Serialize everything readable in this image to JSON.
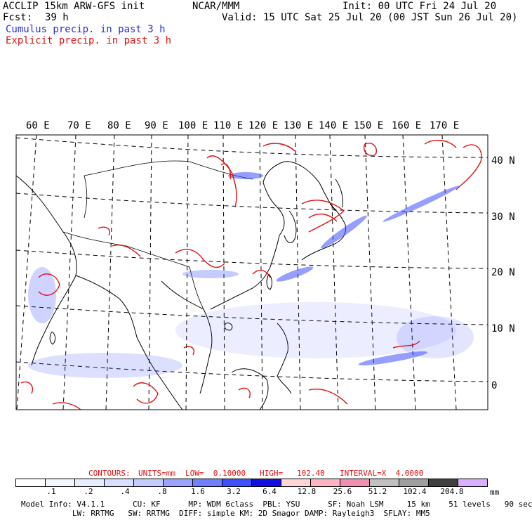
{
  "header": {
    "title_left": "ACCLIP 15km ARW-GFS init",
    "fcst_label": "Fcst:",
    "fcst_value": "39 h",
    "center": "NCAR/MMM",
    "init": "Init: 00 UTC Fri 24 Jul 20",
    "valid": "Valid: 15 UTC Sat 25 Jul 20 (00 JST Sun 26 Jul 20)",
    "legend_cumulus": "Cumulus precip. in past 3 h",
    "legend_explicit": "Explicit precip. in past 3 h",
    "cumulus_color": "#2a2ae0",
    "explicit_color": "#e01010"
  },
  "lon_labels": [
    "60 E",
    "70 E",
    "80 E",
    "90 E",
    "100 E",
    "110 E",
    "120 E",
    "130 E",
    "140 E",
    "150 E",
    "160 E",
    "170 E"
  ],
  "lat_labels": [
    "40 N",
    "30 N",
    "20 N",
    "10 N",
    "0"
  ],
  "contours_line": {
    "contours": "CONTOURS:",
    "units": "UNITS=mm",
    "low": "LOW=  0.10000",
    "high": "HIGH=   102.40",
    "interval": "INTERVAL=X  4.0000"
  },
  "colorbar": {
    "colors": [
      "#ffffff",
      "#f4f6ff",
      "#e8ecff",
      "#d8dfff",
      "#c4ccff",
      "#9aa4ff",
      "#7080ff",
      "#4050ff",
      "#1010e0",
      "#ffd6d6",
      "#ffb4c4",
      "#f090b0",
      "#c0c0c0",
      "#a0a0a0",
      "#404040",
      "#d8b0ff"
    ],
    "ticks": [
      ".1",
      ".2",
      ".4",
      ".8",
      "1.6",
      "3.2",
      "6.4",
      "12.8",
      "25.6",
      "51.2",
      "102.4",
      "204.8"
    ],
    "unit": "mm"
  },
  "model_info": {
    "line1": "Model Info: V4.1.1      CU: KF      MP: WDM 6class  PBL: YSU      SF: Noah LSM     15 km    51 levels   90 sec",
    "line2": "           LW: RRTMG   SW: RRTMG  DIFF: simple KM: 2D Smagor DAMP: Rayleigh3  SFLAY: MM5"
  }
}
